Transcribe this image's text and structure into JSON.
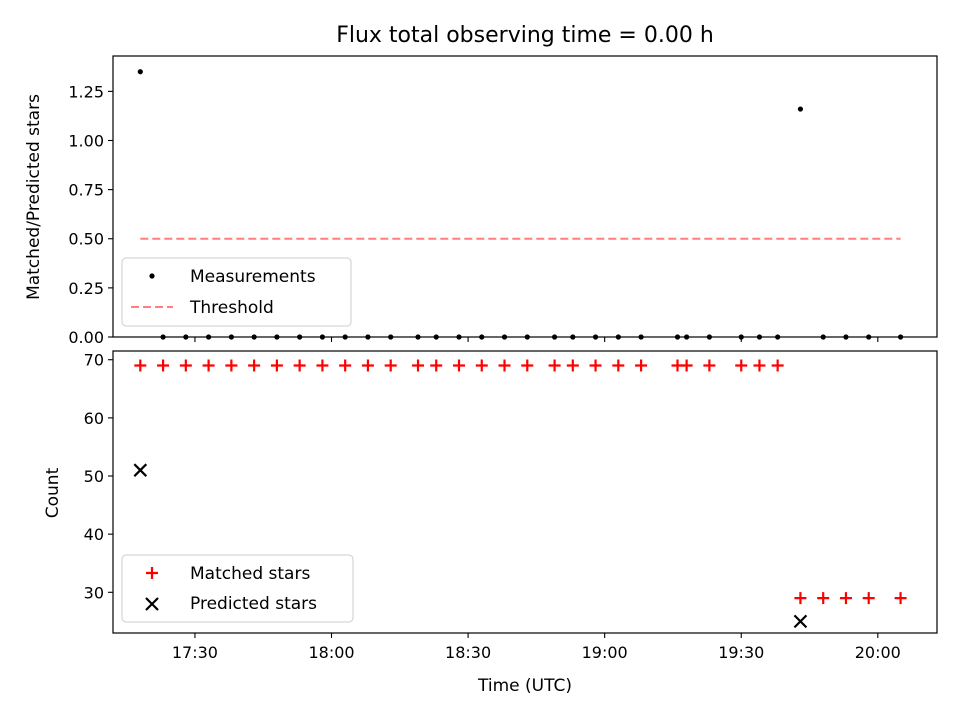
{
  "chart_data": [
    {
      "type": "scatter",
      "title": "Flux total observing time = 0.00 h",
      "xlabel": "",
      "ylabel": "Matched/Predicted stars",
      "ylim": [
        0,
        1.43
      ],
      "y_ticks": [
        "0.00",
        "0.25",
        "0.50",
        "0.75",
        "1.00",
        "1.25"
      ],
      "y_tick_values": [
        0,
        0.25,
        0.5,
        0.75,
        1.0,
        1.25
      ],
      "x_range": [
        "17:12",
        "20:13"
      ],
      "legend_position": "lower-left",
      "series": [
        {
          "name": "Measurements",
          "color": "#000000",
          "marker": "dot",
          "x": [
            "17:18",
            "17:23",
            "17:28",
            "17:33",
            "17:38",
            "17:43",
            "17:48",
            "17:53",
            "17:58",
            "18:03",
            "18:08",
            "18:13",
            "18:19",
            "18:23",
            "18:28",
            "18:33",
            "18:38",
            "18:43",
            "18:49",
            "18:53",
            "18:58",
            "19:03",
            "19:08",
            "19:16",
            "19:18",
            "19:23",
            "19:30",
            "19:34",
            "19:38",
            "19:43",
            "19:48",
            "19:53",
            "19:58",
            "20:05"
          ],
          "y": [
            1.35,
            0,
            0,
            0,
            0,
            0,
            0,
            0,
            0,
            0,
            0,
            0,
            0,
            0,
            0,
            0,
            0,
            0,
            0,
            0,
            0,
            0,
            0,
            0,
            0,
            0,
            0,
            0,
            0,
            1.16,
            0,
            0,
            0,
            0
          ]
        },
        {
          "name": "Threshold",
          "color": "#ff7f7f",
          "style": "dashed",
          "x": [
            "17:18",
            "20:05"
          ],
          "y": [
            0.5,
            0.5
          ]
        }
      ]
    },
    {
      "type": "scatter",
      "title": "",
      "xlabel": "Time (UTC)",
      "ylabel": "Count",
      "ylim": [
        23,
        71.5
      ],
      "y_ticks": [
        "30",
        "40",
        "50",
        "60",
        "70"
      ],
      "y_tick_values": [
        30,
        40,
        50,
        60,
        70
      ],
      "x_ticks": [
        "17:30",
        "18:00",
        "18:30",
        "19:00",
        "19:30",
        "20:00"
      ],
      "x_range": [
        "17:12",
        "20:13"
      ],
      "legend_position": "lower-left",
      "series": [
        {
          "name": "Matched stars",
          "color": "#ff0000",
          "marker": "plus",
          "x": [
            "17:18",
            "17:23",
            "17:28",
            "17:33",
            "17:38",
            "17:43",
            "17:48",
            "17:53",
            "17:58",
            "18:03",
            "18:08",
            "18:13",
            "18:19",
            "18:23",
            "18:28",
            "18:33",
            "18:38",
            "18:43",
            "18:49",
            "18:53",
            "18:58",
            "19:03",
            "19:08",
            "19:16",
            "19:18",
            "19:23",
            "19:30",
            "19:34",
            "19:38",
            "19:43",
            "19:48",
            "19:53",
            "19:58",
            "20:05"
          ],
          "y": [
            69,
            69,
            69,
            69,
            69,
            69,
            69,
            69,
            69,
            69,
            69,
            69,
            69,
            69,
            69,
            69,
            69,
            69,
            69,
            69,
            69,
            69,
            69,
            69,
            69,
            69,
            69,
            69,
            69,
            29,
            29,
            29,
            29,
            29
          ]
        },
        {
          "name": "Predicted stars",
          "color": "#000000",
          "marker": "x",
          "x": [
            "17:18",
            "19:43"
          ],
          "y": [
            51,
            25
          ]
        }
      ]
    }
  ]
}
